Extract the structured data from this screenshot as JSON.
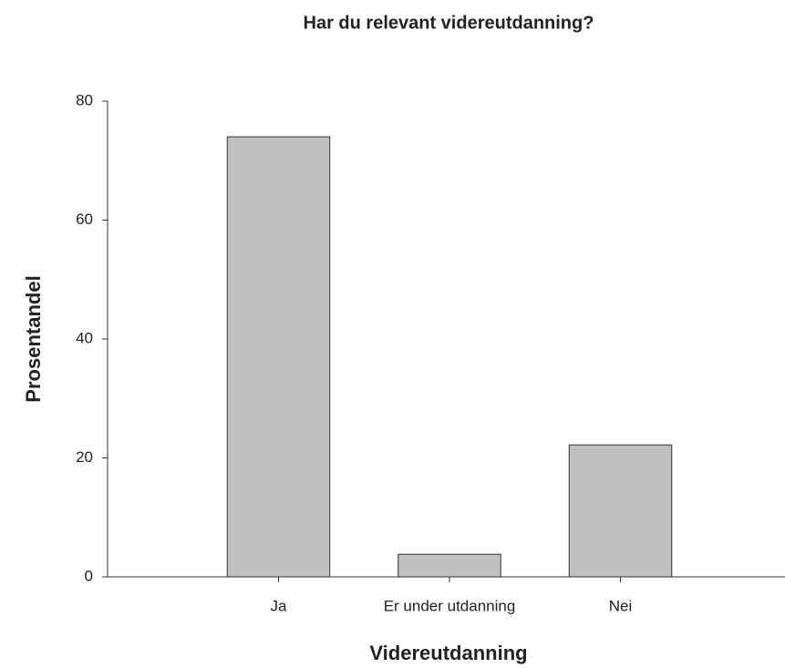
{
  "chart_data": {
    "type": "bar",
    "title": "Har du relevant videreutdanning?",
    "x_label": "Videreutdanning",
    "y_label": "Prosentandel",
    "categories": [
      "Ja",
      "Er under utdanning",
      "Nei"
    ],
    "values": [
      74,
      3.8,
      22.2
    ],
    "color": "#c0c0c0",
    "ylim": [
      0,
      80
    ],
    "yticks": [
      0,
      20,
      40,
      60,
      80
    ],
    "grid": false
  }
}
